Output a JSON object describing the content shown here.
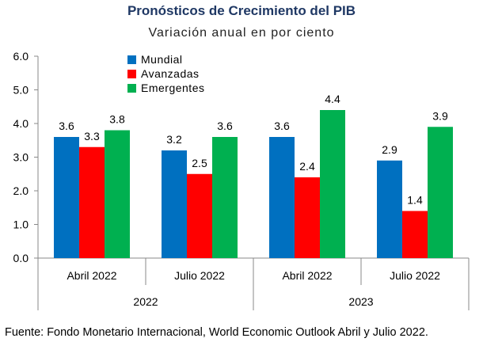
{
  "title": "Pronósticos de Crecimiento del PIB",
  "subtitle": "Variación anual en por ciento",
  "source": "Fuente: Fondo Monetario Internacional, World Economic Outlook Abril y Julio 2022.",
  "chart_data": {
    "type": "bar",
    "categories": [
      "Abril 2022",
      "Julio 2022",
      "Abril 2022",
      "Julio 2022"
    ],
    "groups": [
      {
        "label": "2022",
        "categories": [
          0,
          1
        ]
      },
      {
        "label": "2023",
        "categories": [
          2,
          3
        ]
      }
    ],
    "series": [
      {
        "name": "Mundial",
        "color": "#0070c0",
        "values": [
          3.6,
          3.2,
          3.6,
          2.9
        ]
      },
      {
        "name": "Avanzadas",
        "color": "#ff0000",
        "values": [
          3.3,
          2.5,
          2.4,
          1.4
        ]
      },
      {
        "name": "Emergentes",
        "color": "#00b050",
        "values": [
          3.8,
          3.6,
          4.4,
          3.9
        ]
      }
    ],
    "data_labels": [
      [
        "3.6",
        "3.2",
        "3.6",
        "2.9"
      ],
      [
        "3.3",
        "2.5",
        "2.4",
        "1.4"
      ],
      [
        "3.8",
        "3.6",
        "4.4",
        "3.9"
      ]
    ],
    "yticks": [
      "0.0",
      "1.0",
      "2.0",
      "3.0",
      "4.0",
      "5.0",
      "6.0"
    ],
    "ylim": [
      0,
      6
    ],
    "grid": false,
    "legend_position": "top-left"
  }
}
